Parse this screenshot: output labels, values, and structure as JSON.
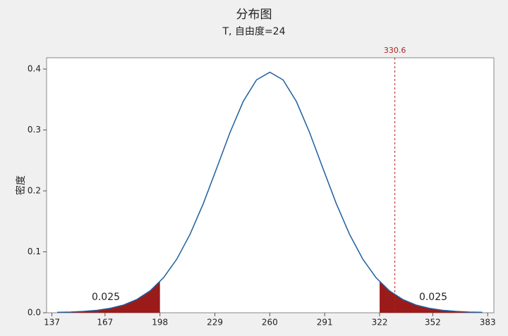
{
  "chart_data": {
    "type": "distribution",
    "title": "分布图",
    "subtitle": "T, 自由度=24",
    "ylabel": "密度",
    "x": [
      140,
      147.5,
      155,
      162.5,
      170,
      177.5,
      185,
      192.5,
      200,
      207.5,
      215,
      222.5,
      230,
      237.5,
      245,
      252.5,
      260,
      267.5,
      275,
      282.5,
      290,
      297.5,
      305,
      312.5,
      320,
      327.5,
      335,
      342.5,
      350,
      357.5,
      365,
      372.5,
      380
    ],
    "values": [
      0.0007,
      0.0012,
      0.0023,
      0.0041,
      0.0074,
      0.0128,
      0.0219,
      0.0361,
      0.0575,
      0.088,
      0.1288,
      0.1794,
      0.237,
      0.2955,
      0.3468,
      0.3822,
      0.3948,
      0.3822,
      0.3468,
      0.2955,
      0.237,
      0.1794,
      0.1288,
      0.088,
      0.0575,
      0.0361,
      0.0219,
      0.0128,
      0.0074,
      0.0041,
      0.0023,
      0.0012,
      0.0007
    ],
    "color": "#1f5f9e",
    "critical_values": [
      198,
      322
    ],
    "tail_areas": [
      0.025,
      0.025
    ],
    "tail_color": "#9b1b1b",
    "reference_line": {
      "value": 330.6,
      "color": "#b22222"
    },
    "xlim": [
      134,
      386.5
    ],
    "xticks": [
      137,
      167,
      198,
      229,
      260,
      291,
      322,
      352,
      383
    ],
    "ylim": [
      0,
      0.4185
    ],
    "yticks": [
      {
        "value": 0,
        "label": "0.0"
      },
      0.1,
      0.2,
      0.3,
      0.4
    ]
  }
}
